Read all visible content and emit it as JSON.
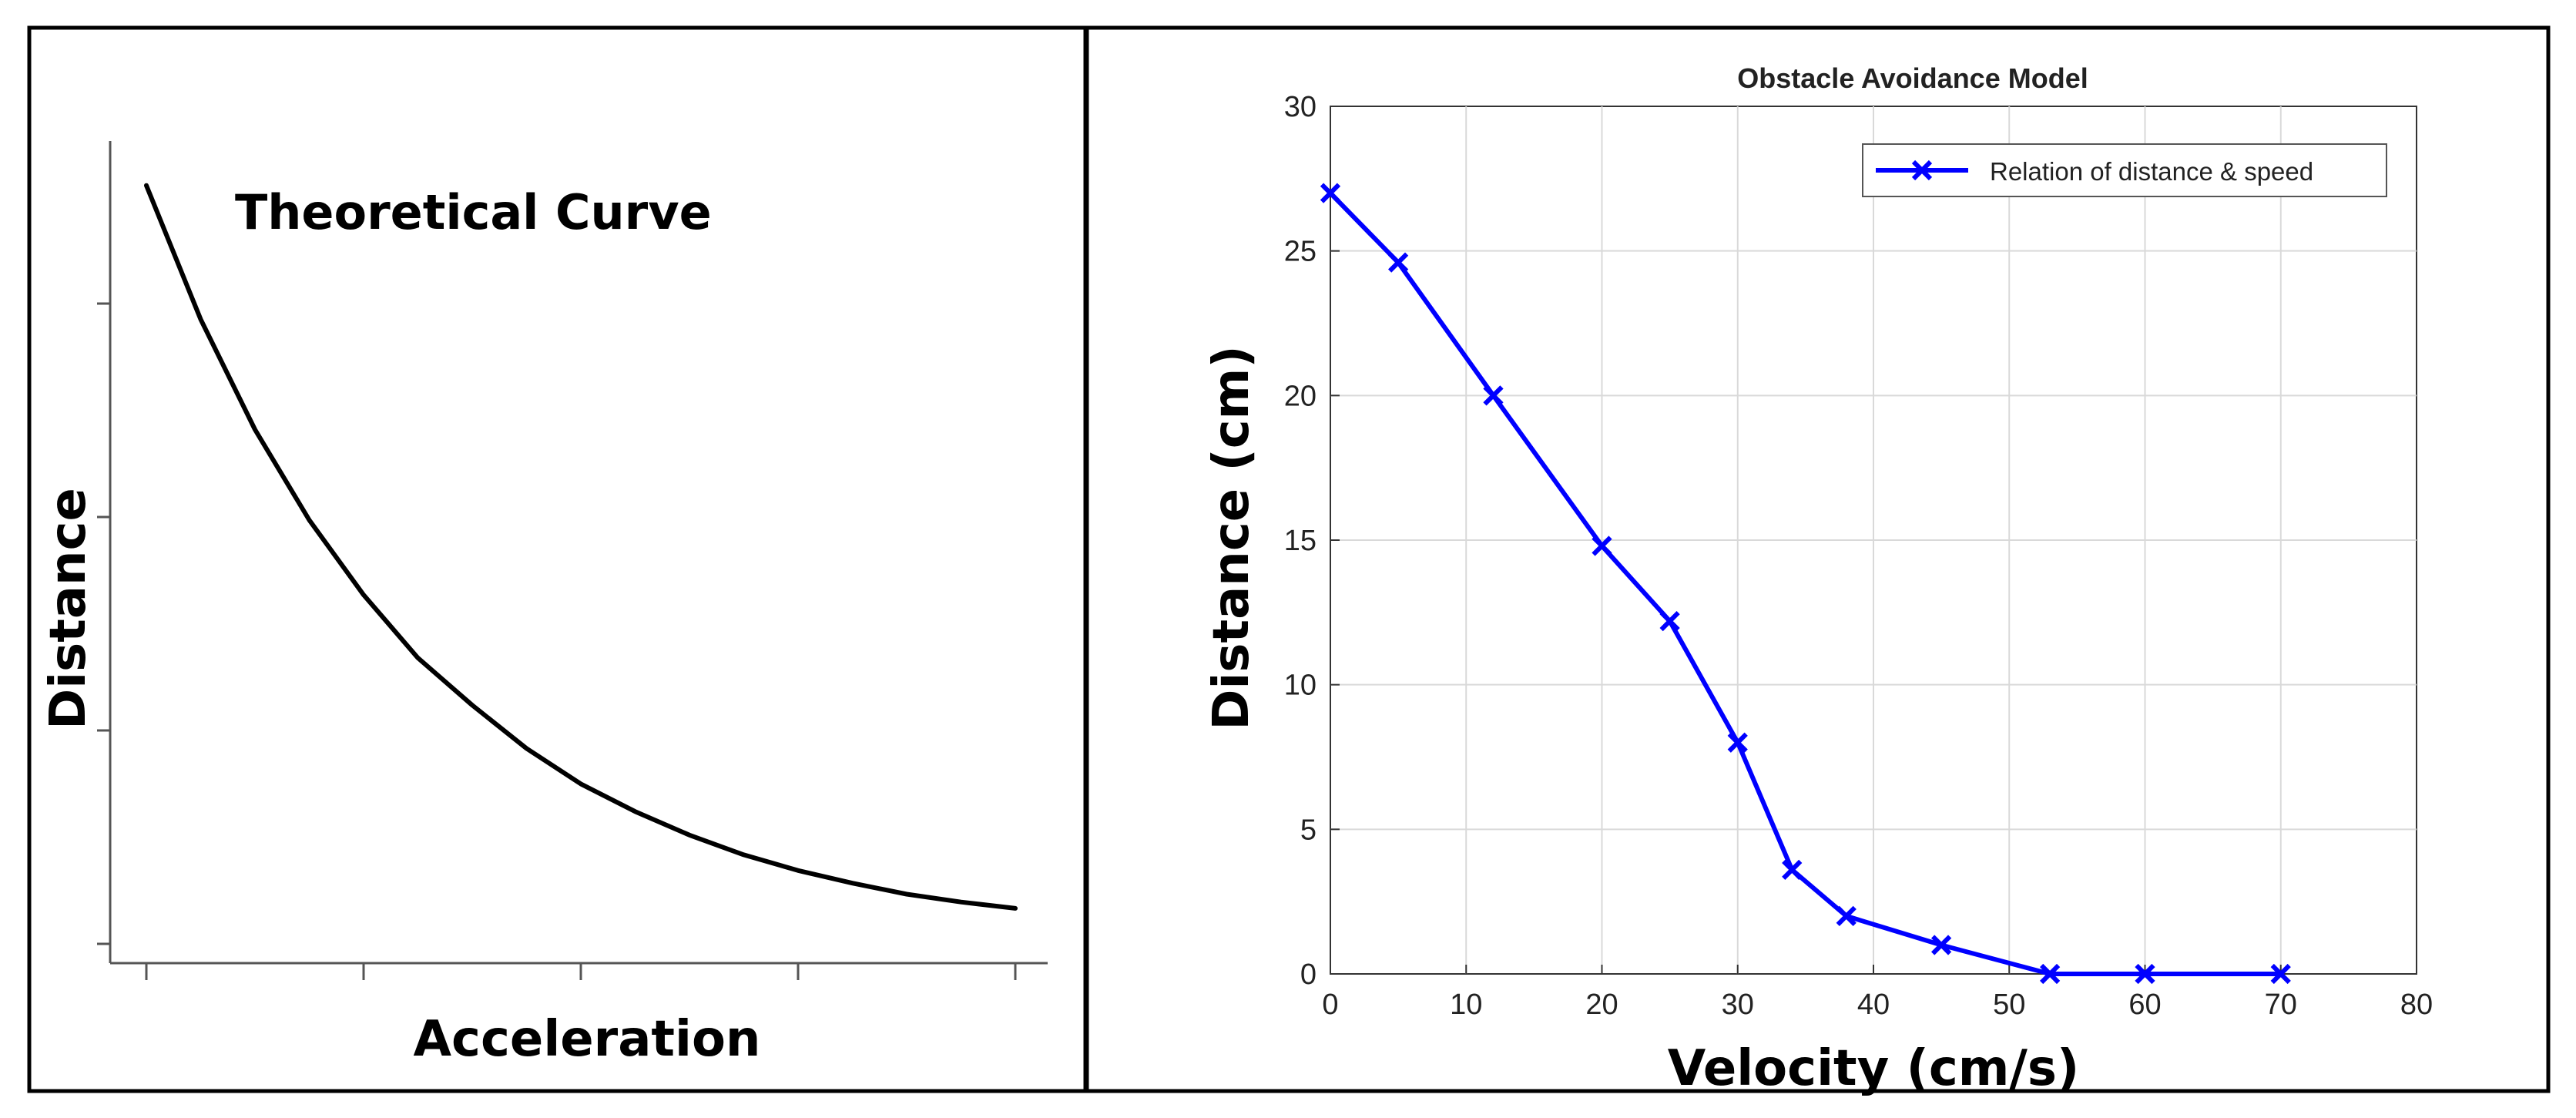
{
  "panels": {
    "left": {
      "title": "Theoretical Curve",
      "xlabel": "Acceleration",
      "ylabel": "Distance"
    }
  },
  "chart_data": [
    {
      "type": "line",
      "title": "Theoretical Curve",
      "xlabel": "Acceleration",
      "ylabel": "Distance",
      "x_tick_count": 5,
      "y_tick_count": 4,
      "xlim": [
        0,
        4
      ],
      "ylim": [
        0,
        1
      ],
      "series": [
        {
          "name": "Theoretical Curve",
          "color": "#000000",
          "x": [
            0,
            0.25,
            0.5,
            0.75,
            1,
            1.25,
            1.5,
            1.75,
            2,
            2.25,
            2.5,
            2.75,
            3,
            3.25,
            3.5,
            3.75,
            4
          ],
          "y": [
            0.97,
            0.8,
            0.66,
            0.545,
            0.45,
            0.37,
            0.31,
            0.255,
            0.21,
            0.175,
            0.145,
            0.12,
            0.1,
            0.084,
            0.07,
            0.06,
            0.052
          ]
        }
      ]
    },
    {
      "type": "line",
      "title": "Obstacle Avoidance Model",
      "xlabel": "Velocity (cm/s)",
      "ylabel": "Distance (cm)",
      "xlim": [
        0,
        80
      ],
      "ylim": [
        0,
        30
      ],
      "xticks": [
        0,
        10,
        20,
        30,
        40,
        50,
        60,
        70,
        80
      ],
      "yticks": [
        0,
        5,
        10,
        15,
        20,
        25,
        30
      ],
      "grid": true,
      "legend_position": "top-right",
      "series": [
        {
          "name": "Relation of distance & speed",
          "color": "#0000ff",
          "marker": "x",
          "x": [
            0,
            5,
            12,
            20,
            25,
            30,
            34,
            38,
            45,
            53,
            60,
            70
          ],
          "y": [
            27,
            24.6,
            20,
            14.8,
            12.2,
            8,
            3.6,
            2,
            1,
            0,
            0,
            0
          ]
        }
      ]
    }
  ]
}
